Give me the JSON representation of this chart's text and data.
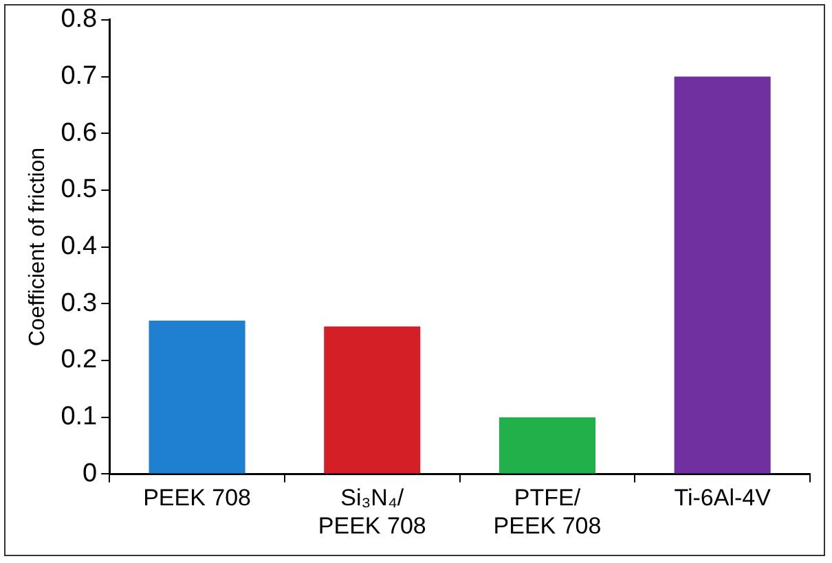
{
  "chart_data": {
    "type": "bar",
    "ylabel": "Coefficient of friction",
    "categories": [
      "PEEK 708",
      "Si₃N₄/PEEK 708",
      "PTFE/PEEK 708",
      "Ti-6Al-4V"
    ],
    "values": [
      0.27,
      0.26,
      0.1,
      0.7
    ],
    "colors": [
      "#1f7fd0",
      "#d41f26",
      "#22b04b",
      "#7030a0"
    ],
    "ylim": [
      0,
      0.8
    ],
    "yticks": [
      0,
      0.1,
      0.2,
      0.3,
      0.4,
      0.5,
      0.6,
      0.7,
      0.8
    ]
  }
}
